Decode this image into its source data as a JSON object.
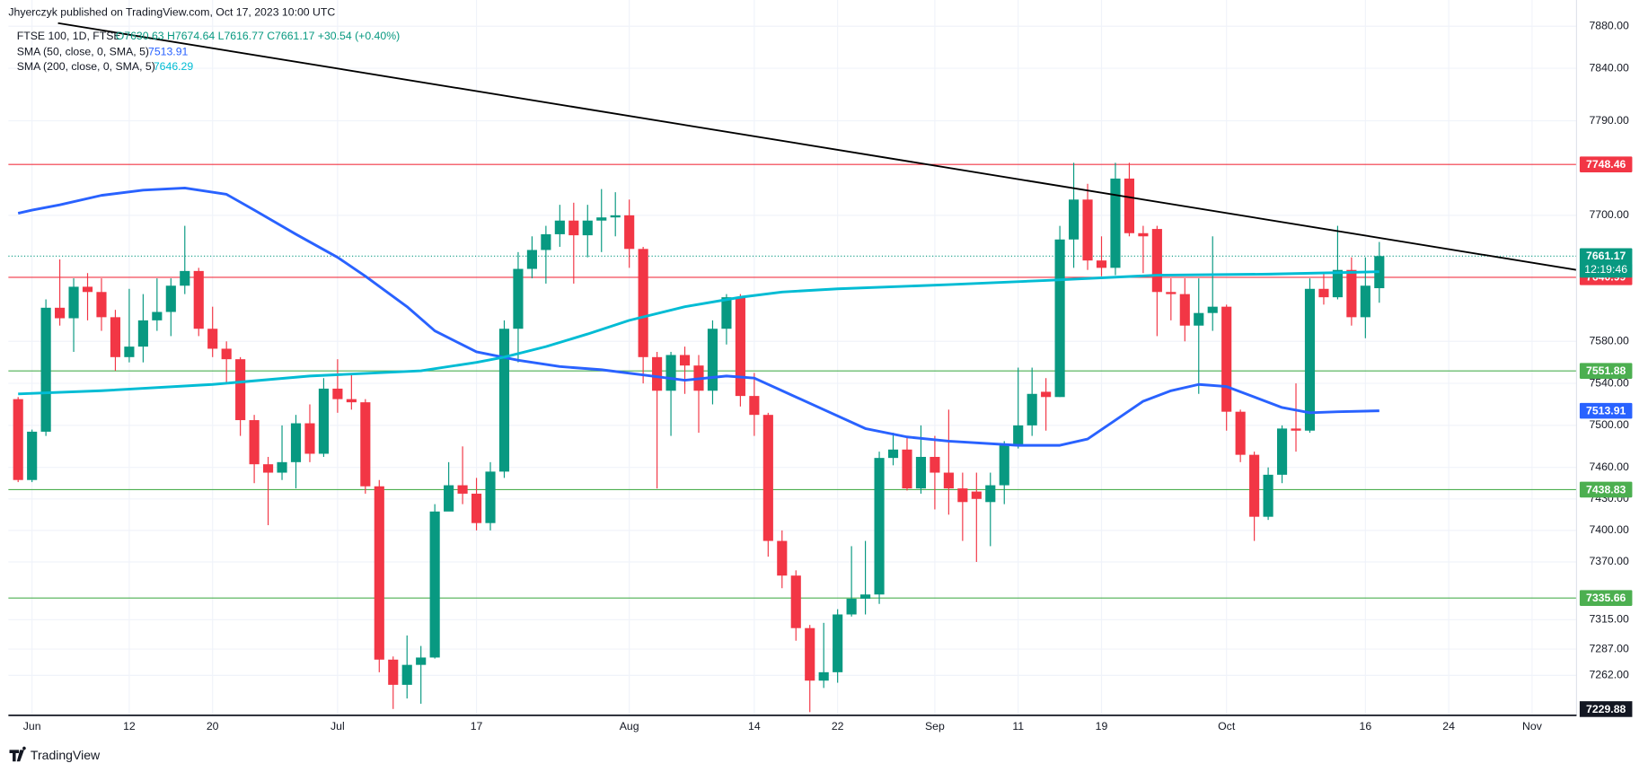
{
  "chart_data": {
    "type": "candlestick",
    "publisher": "Jhyerczyk published on TradingView.com, Oct 17, 2023 10:00 UTC",
    "title": "FTSE 100, 1D, FTSE",
    "ohlc": "O7630.63  H7674.64  L7616.77  C7661.17  +30.54 (+0.40%)",
    "watermark": "TradingView",
    "countdown": "12:19:46",
    "up_color": "#089981",
    "down_color": "#f23645",
    "grid": true,
    "open": [
      7525,
      7448,
      7494,
      7612,
      7602,
      7632,
      7627,
      7603,
      7565,
      7575,
      7600,
      7608,
      7633,
      7647,
      7592,
      7573,
      7563,
      7505,
      7463,
      7455,
      7465,
      7502,
      7473,
      7535,
      7525,
      7522,
      7442,
      7277,
      7253,
      7272,
      7279,
      7418,
      7443,
      7435,
      7407,
      7456,
      7592,
      7649,
      7667,
      7682,
      7695,
      7681,
      7695,
      7698,
      7700,
      7668,
      7565,
      7533,
      7567,
      7557,
      7533,
      7592,
      7622,
      7528,
      7510,
      7390,
      7357,
      7307,
      7257,
      7265,
      7320,
      7335,
      7339,
      7469,
      7477,
      7440,
      7470,
      7455,
      7440,
      7437,
      7427,
      7443,
      7481,
      7500,
      7532,
      7527,
      7677,
      7715,
      7657,
      7650,
      7735,
      7683,
      7687,
      7627,
      7625,
      7595,
      7607,
      7613,
      7513,
      7472,
      7413,
      7453,
      7497,
      7495,
      7630,
      7622,
      7648,
      7603,
      7630.63
    ],
    "high": [
      7527,
      7496,
      7620,
      7658,
      7640,
      7645,
      7640,
      7610,
      7630,
      7625,
      7640,
      7640,
      7690,
      7650,
      7613,
      7580,
      7565,
      7510,
      7470,
      7500,
      7510,
      7520,
      7545,
      7563,
      7548,
      7525,
      7448,
      7280,
      7300,
      7290,
      7425,
      7465,
      7480,
      7450,
      7465,
      7600,
      7665,
      7680,
      7690,
      7710,
      7712,
      7710,
      7725,
      7722,
      7715,
      7670,
      7570,
      7570,
      7575,
      7567,
      7600,
      7625,
      7625,
      7550,
      7512,
      7400,
      7362,
      7310,
      7312,
      7325,
      7385,
      7390,
      7475,
      7493,
      7490,
      7500,
      7490,
      7515,
      7455,
      7455,
      7455,
      7485,
      7555,
      7555,
      7545,
      7690,
      7750,
      7730,
      7680,
      7750,
      7750,
      7690,
      7690,
      7640,
      7640,
      7640,
      7680,
      7615,
      7515,
      7475,
      7460,
      7500,
      7540,
      7640,
      7645,
      7690,
      7660,
      7660,
      7674.64
    ],
    "low": [
      7446,
      7446,
      7490,
      7595,
      7570,
      7600,
      7590,
      7552,
      7560,
      7560,
      7590,
      7585,
      7625,
      7585,
      7565,
      7540,
      7490,
      7445,
      7405,
      7448,
      7440,
      7465,
      7470,
      7512,
      7515,
      7435,
      7265,
      7230,
      7240,
      7235,
      7278,
      7420,
      7425,
      7400,
      7400,
      7450,
      7560,
      7640,
      7635,
      7670,
      7635,
      7660,
      7665,
      7680,
      7650,
      7540,
      7440,
      7490,
      7530,
      7493,
      7520,
      7577,
      7518,
      7490,
      7375,
      7345,
      7295,
      7227,
      7250,
      7255,
      7318,
      7320,
      7330,
      7462,
      7438,
      7435,
      7420,
      7415,
      7390,
      7370,
      7385,
      7425,
      7478,
      7490,
      7495,
      7527,
      7650,
      7648,
      7642,
      7643,
      7680,
      7645,
      7585,
      7600,
      7580,
      7530,
      7590,
      7495,
      7465,
      7390,
      7410,
      7445,
      7475,
      7493,
      7615,
      7620,
      7595,
      7583,
      7616.77
    ],
    "close": [
      7448,
      7494,
      7612,
      7602,
      7632,
      7627,
      7603,
      7565,
      7575,
      7600,
      7608,
      7633,
      7647,
      7592,
      7573,
      7563,
      7505,
      7463,
      7455,
      7465,
      7502,
      7473,
      7535,
      7525,
      7522,
      7442,
      7277,
      7253,
      7272,
      7279,
      7418,
      7443,
      7435,
      7407,
      7456,
      7592,
      7649,
      7667,
      7682,
      7695,
      7681,
      7695,
      7698,
      7700,
      7668,
      7565,
      7533,
      7567,
      7557,
      7533,
      7592,
      7622,
      7528,
      7510,
      7390,
      7357,
      7307,
      7257,
      7265,
      7320,
      7335,
      7339,
      7469,
      7477,
      7440,
      7470,
      7455,
      7440,
      7427,
      7430,
      7443,
      7481,
      7500,
      7530,
      7527,
      7677,
      7715,
      7657,
      7650,
      7735,
      7683,
      7680,
      7627,
      7625,
      7595,
      7607,
      7613,
      7513,
      7472,
      7413,
      7453,
      7497,
      7495,
      7630,
      7622,
      7648,
      7603,
      7633,
      7661.17
    ],
    "series": [
      {
        "name": "SMA (50, close, 0, SMA, 5)",
        "color": "#2962ff",
        "x": [
          0,
          1,
          3,
          6,
          9,
          12,
          15,
          17,
          20,
          23,
          25,
          28,
          30,
          33,
          36,
          39,
          42,
          45,
          48,
          51,
          53,
          55,
          58,
          61,
          64,
          67,
          72,
          75,
          77,
          79,
          81,
          83,
          85,
          87,
          89,
          91,
          93,
          95,
          98
        ],
        "values": [
          7702,
          7705,
          7710,
          7719,
          7724,
          7726,
          7720,
          7705,
          7682,
          7660,
          7642,
          7613,
          7590,
          7570,
          7562,
          7556,
          7553,
          7548,
          7543,
          7547,
          7545,
          7533,
          7515,
          7497,
          7489,
          7485,
          7481,
          7481,
          7487,
          7505,
          7523,
          7533,
          7539,
          7537,
          7527,
          7517,
          7512,
          7513,
          7513.91
        ]
      },
      {
        "name": "SMA (200, close, 0, SMA, 5)",
        "color": "#00bcd4",
        "x": [
          0,
          6,
          14,
          21,
          29,
          33,
          35,
          38,
          41,
          44,
          48,
          52,
          55,
          59,
          67,
          74,
          82,
          90,
          98
        ],
        "values": [
          7530,
          7533,
          7539,
          7547,
          7552,
          7560,
          7565,
          7575,
          7587,
          7600,
          7613,
          7622,
          7627,
          7630,
          7634,
          7638,
          7643,
          7644,
          7646.29
        ]
      }
    ],
    "trendline": {
      "x": [
        2.87,
        112.2
      ],
      "values": [
        7883,
        7648
      ],
      "color": "#000000"
    },
    "levels": [
      {
        "value": 7748.46,
        "color": "#f23645"
      },
      {
        "value": 7640.99,
        "color": "#f23645"
      },
      {
        "value": 7551.88,
        "color": "#4caf50"
      },
      {
        "value": 7438.83,
        "color": "#4caf50"
      },
      {
        "value": 7335.66,
        "color": "#4caf50"
      }
    ],
    "scale_marker": 7229.88,
    "xlim": [
      -0.7,
      112.2
    ],
    "ylim": [
      7225,
      7905
    ],
    "xticks": [
      {
        "value": 1,
        "label": "Jun"
      },
      {
        "value": 8,
        "label": "12"
      },
      {
        "value": 14,
        "label": "20"
      },
      {
        "value": 23,
        "label": "Jul"
      },
      {
        "value": 33,
        "label": "17"
      },
      {
        "value": 44,
        "label": "Aug"
      },
      {
        "value": 53,
        "label": "14"
      },
      {
        "value": 59,
        "label": "22"
      },
      {
        "value": 66,
        "label": "Sep"
      },
      {
        "value": 72,
        "label": "11"
      },
      {
        "value": 78,
        "label": "19"
      },
      {
        "value": 87,
        "label": "Oct"
      },
      {
        "value": 97,
        "label": "16"
      },
      {
        "value": 103,
        "label": "24"
      },
      {
        "value": 109,
        "label": "Nov"
      }
    ],
    "yticks": [
      {
        "value": 7880,
        "label": "7880.00"
      },
      {
        "value": 7840,
        "label": "7840.00"
      },
      {
        "value": 7790,
        "label": "7790.00"
      },
      {
        "value": 7700,
        "label": "7700.00"
      },
      {
        "value": 7580,
        "label": "7580.00"
      },
      {
        "value": 7540,
        "label": "7540.00"
      },
      {
        "value": 7500,
        "label": "7500.00"
      },
      {
        "value": 7460,
        "label": "7460.00"
      },
      {
        "value": 7430,
        "label": "7430.00"
      },
      {
        "value": 7400,
        "label": "7400.00"
      },
      {
        "value": 7370,
        "label": "7370.00"
      },
      {
        "value": 7315,
        "label": "7315.00"
      },
      {
        "value": 7287,
        "label": "7287.00"
      },
      {
        "value": 7262,
        "label": "7262.00"
      }
    ]
  }
}
